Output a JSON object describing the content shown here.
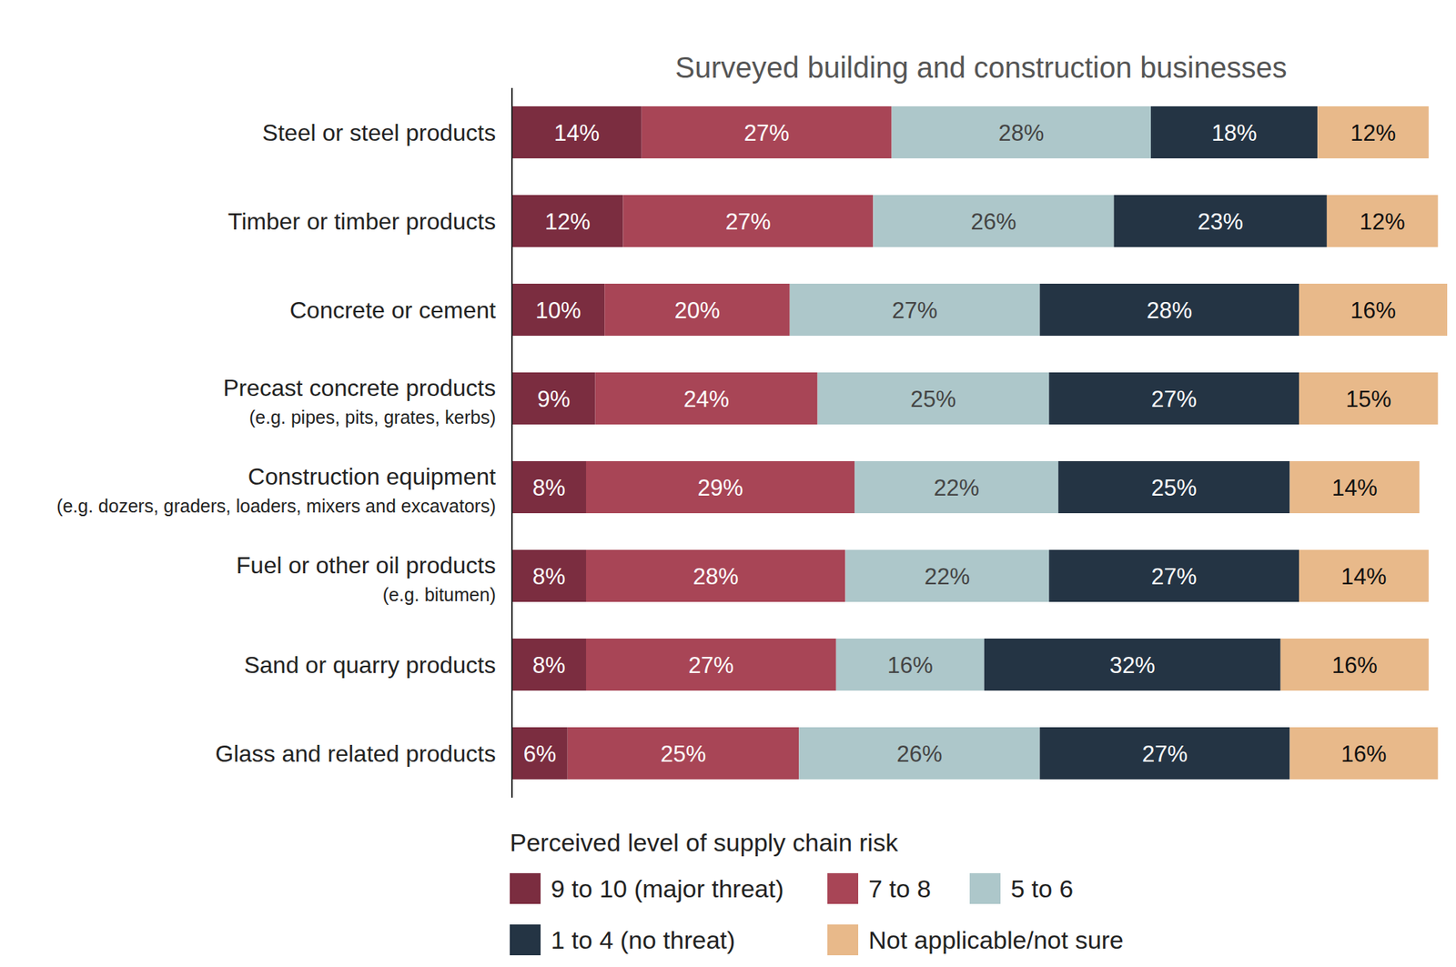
{
  "chart_data": {
    "type": "bar",
    "orientation": "horizontal",
    "stacked": true,
    "data_labels": true,
    "tick_labels": "y",
    "grid": false,
    "title": "Surveyed building and construction businesses",
    "legend_title": "Perceived level of supply chain risk",
    "legend": "bottom",
    "categories": [
      "Steel or steel products",
      "Timber or timber products",
      "Concrete or cement",
      "Precast concrete products\n(e.g. pipes, pits, grates, kerbs)",
      "Construction equipment\n(e.g. dozers, graders, loaders, mixers and excavators)",
      "Fuel or other oil products\n(e.g. bitumen)",
      "Sand or quarry products",
      "Glass and related products"
    ],
    "series": [
      {
        "name": "9 to 10 (major threat)",
        "color": "#7b2d40",
        "values": [
          14,
          12,
          10,
          9,
          8,
          8,
          8,
          6
        ],
        "value_labels": [
          "14%",
          "12%",
          "10%",
          "9%",
          "8%",
          "8%",
          "8%",
          "6%"
        ]
      },
      {
        "name": "7 to 8",
        "color": "#a84556",
        "values": [
          27,
          27,
          20,
          24,
          29,
          28,
          27,
          25
        ],
        "value_labels": [
          "27%",
          "27%",
          "20%",
          "24%",
          "29%",
          "28%",
          "27%",
          "25%"
        ]
      },
      {
        "name": "5 to 6",
        "color": "#adc7ca",
        "values": [
          28,
          26,
          27,
          25,
          22,
          22,
          16,
          26
        ],
        "value_labels": [
          "28%",
          "26%",
          "27%",
          "25%",
          "22%",
          "22%",
          "16%",
          "26%"
        ]
      },
      {
        "name": "1 to 4 (no threat)",
        "color": "#243444",
        "values": [
          18,
          23,
          28,
          27,
          25,
          27,
          32,
          27
        ],
        "value_labels": [
          "18%",
          "23%",
          "28%",
          "27%",
          "25%",
          "27%",
          "32%",
          "27%"
        ]
      },
      {
        "name": "Not applicable/not sure",
        "color": "#e8b98a",
        "values": [
          12,
          12,
          16,
          15,
          14,
          14,
          16,
          16
        ],
        "value_labels": [
          "12%",
          "12%",
          "16%",
          "15%",
          "14%",
          "14%",
          "16%",
          "16%"
        ]
      }
    ]
  }
}
